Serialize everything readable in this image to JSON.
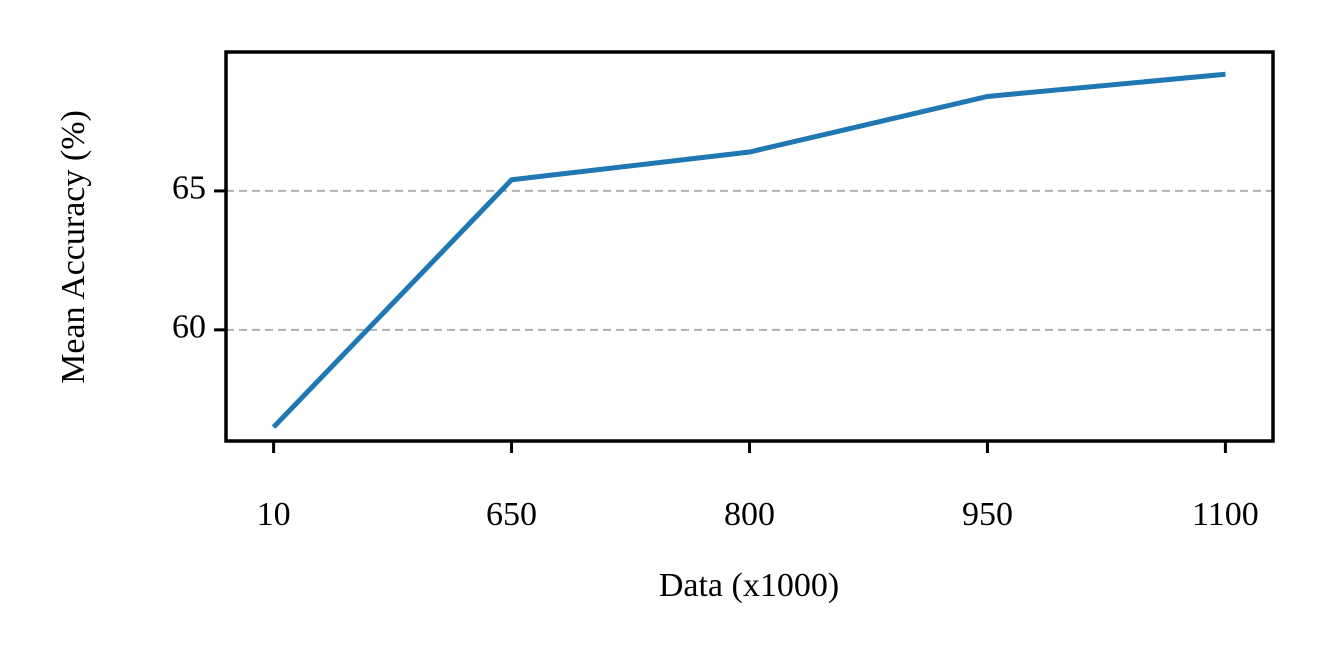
{
  "chart_data": {
    "type": "line",
    "xlabel": "Data (x1000)",
    "ylabel": "Mean Accuracy (%)",
    "categories": [
      "10",
      "650",
      "800",
      "950",
      "1100"
    ],
    "series": [
      {
        "name": "Mean Accuracy",
        "color": "#1f77b4",
        "values": [
          56.5,
          65.4,
          66.4,
          68.4,
          69.2
        ]
      }
    ],
    "ylim": [
      56,
      70
    ],
    "yticks": [
      60,
      65
    ],
    "grid": true
  }
}
